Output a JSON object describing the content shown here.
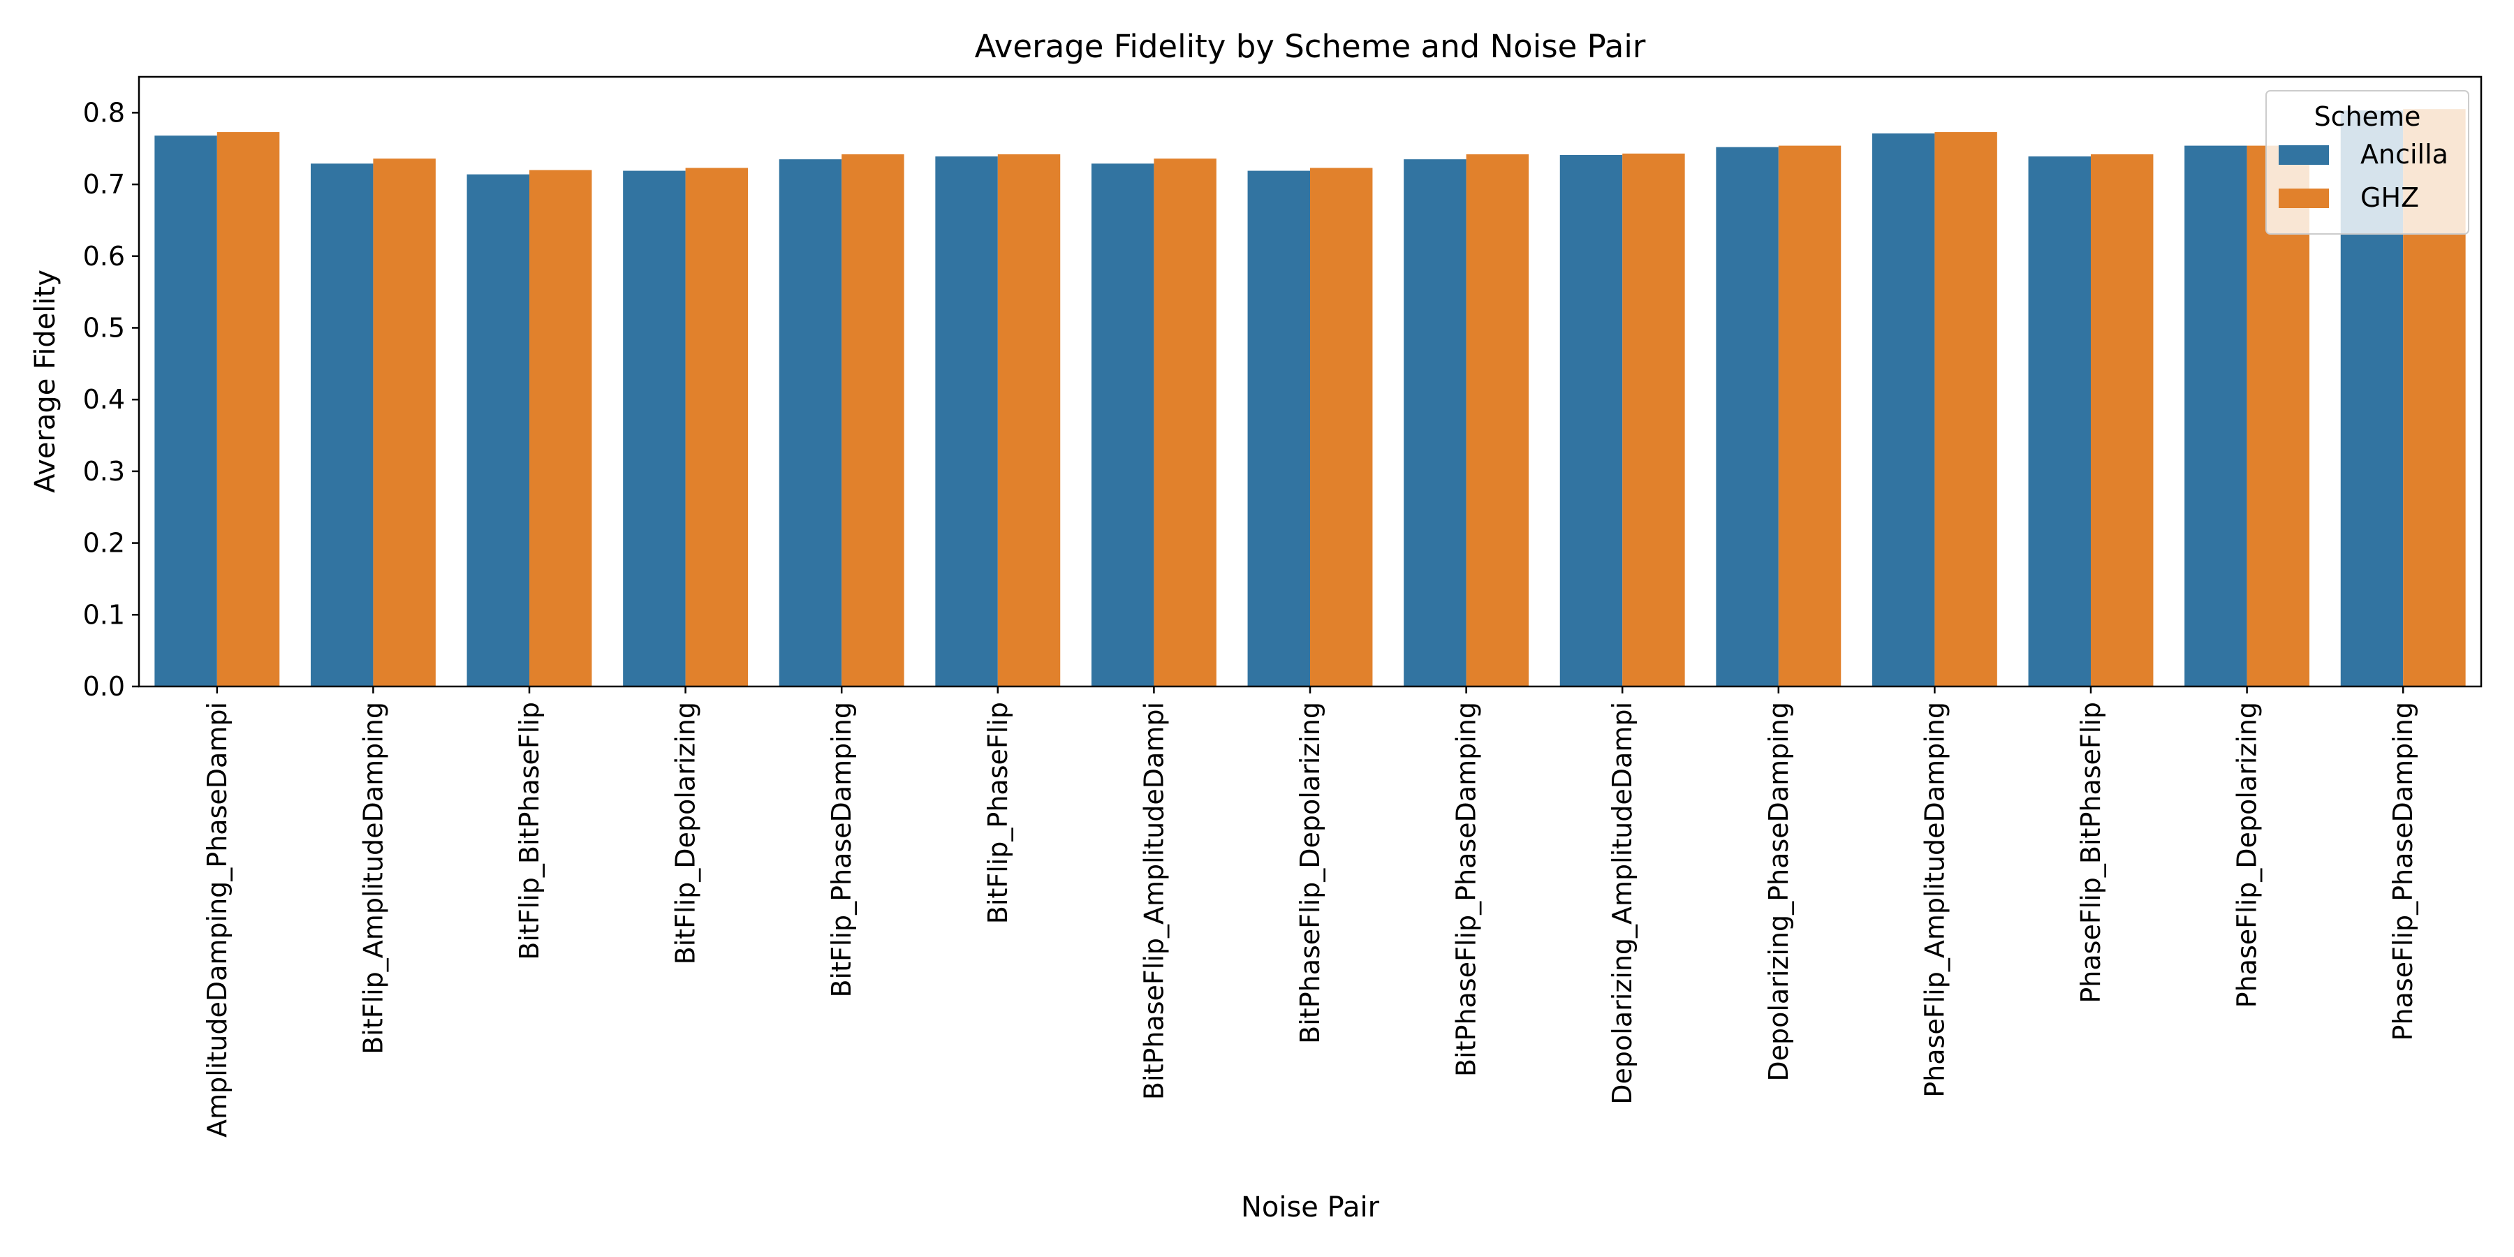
{
  "chart_data": {
    "type": "bar",
    "title": "Average Fidelity by Scheme and Noise Pair",
    "xlabel": "Noise Pair",
    "ylabel": "Average Fidelity",
    "ylim": [
      0,
      0.85
    ],
    "yticks": [
      "0.0",
      "0.1",
      "0.2",
      "0.3",
      "0.4",
      "0.5",
      "0.6",
      "0.7",
      "0.8"
    ],
    "grid": false,
    "legend": {
      "title": "Scheme",
      "position": "top-right"
    },
    "categories": [
      "AmplitudeDamping_PhaseDampi",
      "BitFlip_AmplitudeDamping",
      "BitFlip_BitPhaseFlip",
      "BitFlip_Depolarizing",
      "BitFlip_PhaseDamping",
      "BitFlip_PhaseFlip",
      "BitPhaseFlip_AmplitudeDampi",
      "BitPhaseFlip_Depolarizing",
      "BitPhaseFlip_PhaseDamping",
      "Depolarizing_AmplitudeDampi",
      "Depolarizing_PhaseDamping",
      "PhaseFlip_AmplitudeDamping",
      "PhaseFlip_BitPhaseFlip",
      "PhaseFlip_Depolarizing",
      "PhaseFlip_PhaseDamping"
    ],
    "series": [
      {
        "name": "Ancilla",
        "color": "#3274a1",
        "values": [
          0.768,
          0.729,
          0.714,
          0.719,
          0.735,
          0.739,
          0.729,
          0.719,
          0.735,
          0.741,
          0.752,
          0.771,
          0.739,
          0.754,
          0.803
        ]
      },
      {
        "name": "GHZ",
        "color": "#e1812c",
        "values": [
          0.773,
          0.736,
          0.72,
          0.723,
          0.742,
          0.742,
          0.736,
          0.723,
          0.742,
          0.743,
          0.754,
          0.773,
          0.742,
          0.754,
          0.805
        ]
      }
    ]
  }
}
